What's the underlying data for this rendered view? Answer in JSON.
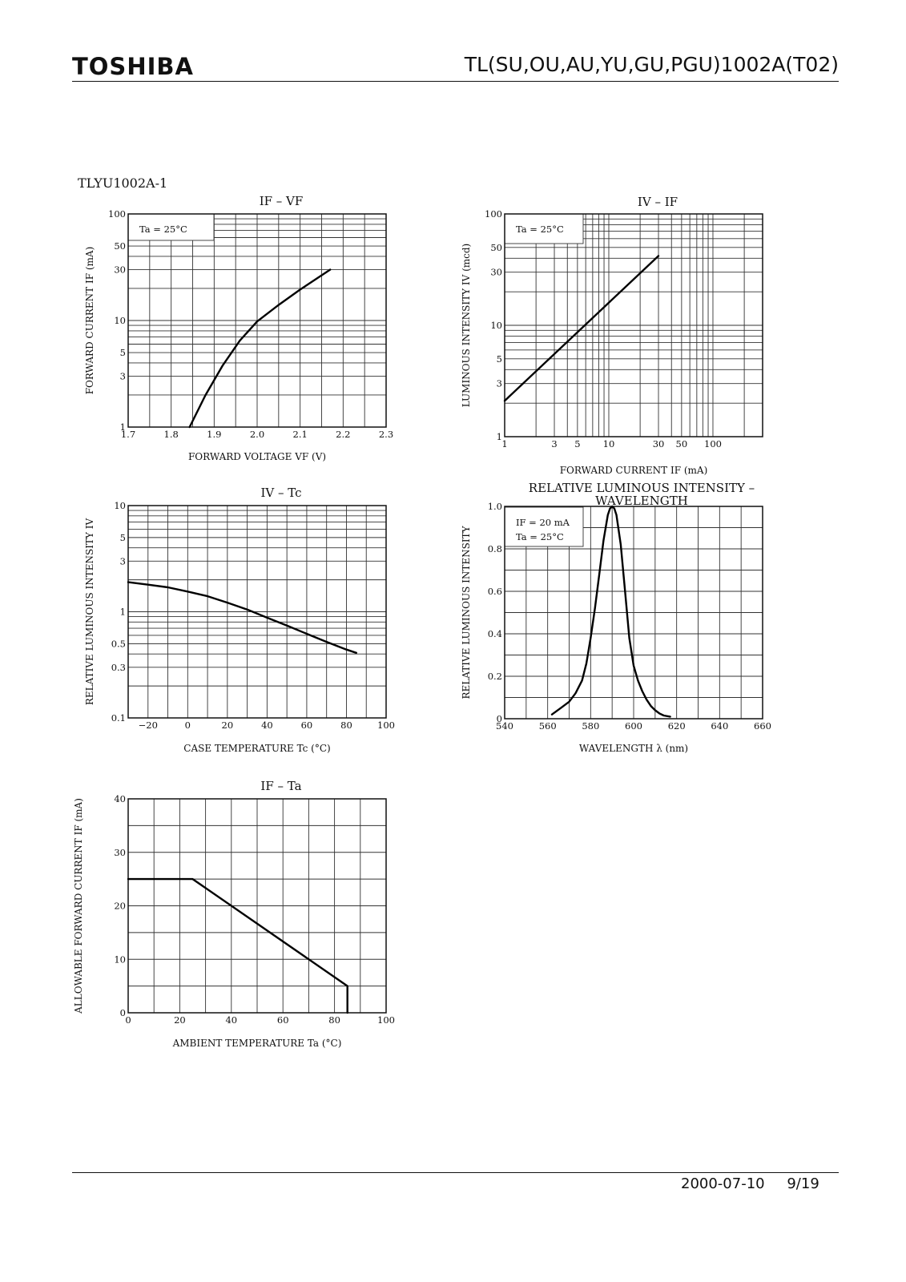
{
  "header": {
    "brand": "TOSHIBA",
    "part_number": "TL(SU,OU,AU,YU,GU,PGU)1002A(T02)"
  },
  "device_label": "TLYU1002A-1",
  "footer": {
    "date": "2000-07-10",
    "page": "9/19"
  },
  "chart_data": [
    {
      "id": "if-vf",
      "type": "line",
      "title": "IF – VF",
      "xlabel": "FORWARD VOLTAGE  VF  (V)",
      "ylabel": "FORWARD CURRENT  IF  (mA)",
      "xscale": "linear",
      "yscale": "log",
      "xlim": [
        1.7,
        2.3
      ],
      "ylim": [
        1,
        100
      ],
      "xticks": [
        1.7,
        1.8,
        1.9,
        2.0,
        2.1,
        2.2,
        2.3
      ],
      "xtick_labels": [
        "1.7",
        "1.8",
        "1.9",
        "2.0",
        "2.1",
        "2.2",
        "2.3"
      ],
      "yticks": [
        1,
        3,
        5,
        10,
        30,
        50,
        100
      ],
      "ytick_labels": [
        "1",
        "3",
        "5",
        "10",
        "30",
        "50",
        "100"
      ],
      "annotations": [
        "Ta = 25°C"
      ],
      "series": [
        {
          "x": [
            1.843,
            1.88,
            1.92,
            1.96,
            2.0,
            2.05,
            2.1,
            2.17
          ],
          "y": [
            1,
            2.0,
            3.8,
            6.5,
            9.8,
            14.0,
            19.5,
            30
          ]
        }
      ]
    },
    {
      "id": "iv-if",
      "type": "line",
      "title": "IV – IF",
      "xlabel": "FORWARD CURRENT  IF  (mA)",
      "ylabel": "LUMINOUS INTENSITY  IV  (mcd)",
      "xscale": "log",
      "yscale": "log",
      "xlim": [
        1,
        300
      ],
      "ylim": [
        1,
        100
      ],
      "xticks": [
        1,
        3,
        5,
        10,
        30,
        50,
        100
      ],
      "xtick_labels": [
        "1",
        "3",
        "5",
        "10",
        "30",
        "50",
        "100"
      ],
      "yticks": [
        1,
        3,
        5,
        10,
        30,
        50,
        100
      ],
      "ytick_labels": [
        "1",
        "3",
        "5",
        "10",
        "30",
        "50",
        "100"
      ],
      "annotations": [
        "Ta = 25°C"
      ],
      "series": [
        {
          "x": [
            1,
            30
          ],
          "y": [
            2.1,
            42
          ]
        }
      ]
    },
    {
      "id": "iv-tc",
      "type": "line",
      "title": "IV – Tc",
      "xlabel": "CASE TEMPERATURE  Tc  (°C)",
      "ylabel": "RELATIVE LUMINOUS INTENSITY  IV",
      "xscale": "linear",
      "yscale": "log",
      "xlim": [
        -30,
        100
      ],
      "ylim": [
        0.1,
        10
      ],
      "xticks": [
        -20,
        0,
        20,
        40,
        60,
        80,
        100
      ],
      "xtick_labels": [
        "−20",
        "0",
        "20",
        "40",
        "60",
        "80",
        "100"
      ],
      "yticks": [
        0.1,
        0.3,
        0.5,
        1,
        3,
        5,
        10
      ],
      "ytick_labels": [
        "0.1",
        "0.3",
        "0.5",
        "1",
        "3",
        "5",
        "10"
      ],
      "series": [
        {
          "x": [
            -30,
            -20,
            -10,
            0,
            10,
            20,
            30,
            40,
            50,
            60,
            70,
            80,
            85
          ],
          "y": [
            1.9,
            1.8,
            1.7,
            1.55,
            1.4,
            1.22,
            1.05,
            0.88,
            0.74,
            0.62,
            0.52,
            0.44,
            0.41
          ]
        }
      ]
    },
    {
      "id": "rel-wavelength",
      "type": "line",
      "title": [
        "RELATIVE LUMINOUS INTENSITY –",
        "WAVELENGTH"
      ],
      "xlabel": "WAVELENGTH  λ  (nm)",
      "ylabel": "RELATIVE LUMINOUS INTENSITY",
      "xscale": "linear",
      "yscale": "linear",
      "xlim": [
        540,
        660
      ],
      "ylim": [
        0,
        1.0
      ],
      "xticks": [
        540,
        560,
        580,
        600,
        620,
        640,
        660
      ],
      "xtick_labels": [
        "540",
        "560",
        "580",
        "600",
        "620",
        "640",
        "660"
      ],
      "yticks": [
        0,
        0.2,
        0.4,
        0.6,
        0.8,
        1.0
      ],
      "ytick_labels": [
        "0",
        "0.2",
        "0.4",
        "0.6",
        "0.8",
        "1.0"
      ],
      "annotations": [
        "IF = 20 mA",
        "Ta = 25°C"
      ],
      "series": [
        {
          "x": [
            562,
            566,
            570,
            573,
            576,
            578,
            580,
            582,
            584,
            586,
            588,
            589,
            590,
            591,
            592,
            594,
            596,
            598,
            600,
            602,
            604,
            606,
            608,
            610,
            612,
            614,
            617
          ],
          "y": [
            0.02,
            0.05,
            0.08,
            0.12,
            0.18,
            0.26,
            0.38,
            0.52,
            0.68,
            0.84,
            0.96,
            0.99,
            1.0,
            0.99,
            0.96,
            0.82,
            0.6,
            0.38,
            0.25,
            0.18,
            0.13,
            0.09,
            0.06,
            0.04,
            0.025,
            0.015,
            0.01
          ]
        }
      ]
    },
    {
      "id": "if-ta",
      "type": "line",
      "title": "IF – Ta",
      "xlabel": "AMBIENT TEMPERATURE  Ta  (°C)",
      "ylabel": "ALLOWABLE FORWARD CURRENT  IF  (mA)",
      "xscale": "linear",
      "yscale": "linear",
      "xlim": [
        0,
        100
      ],
      "ylim": [
        0,
        40
      ],
      "xticks": [
        0,
        20,
        40,
        60,
        80,
        100
      ],
      "xtick_labels": [
        "0",
        "20",
        "40",
        "60",
        "80",
        "100"
      ],
      "yticks": [
        0,
        10,
        20,
        30,
        40
      ],
      "ytick_labels": [
        "0",
        "10",
        "20",
        "30",
        "40"
      ],
      "series": [
        {
          "x": [
            0,
            25,
            85,
            85
          ],
          "y": [
            25,
            25,
            5,
            0
          ]
        }
      ]
    }
  ]
}
